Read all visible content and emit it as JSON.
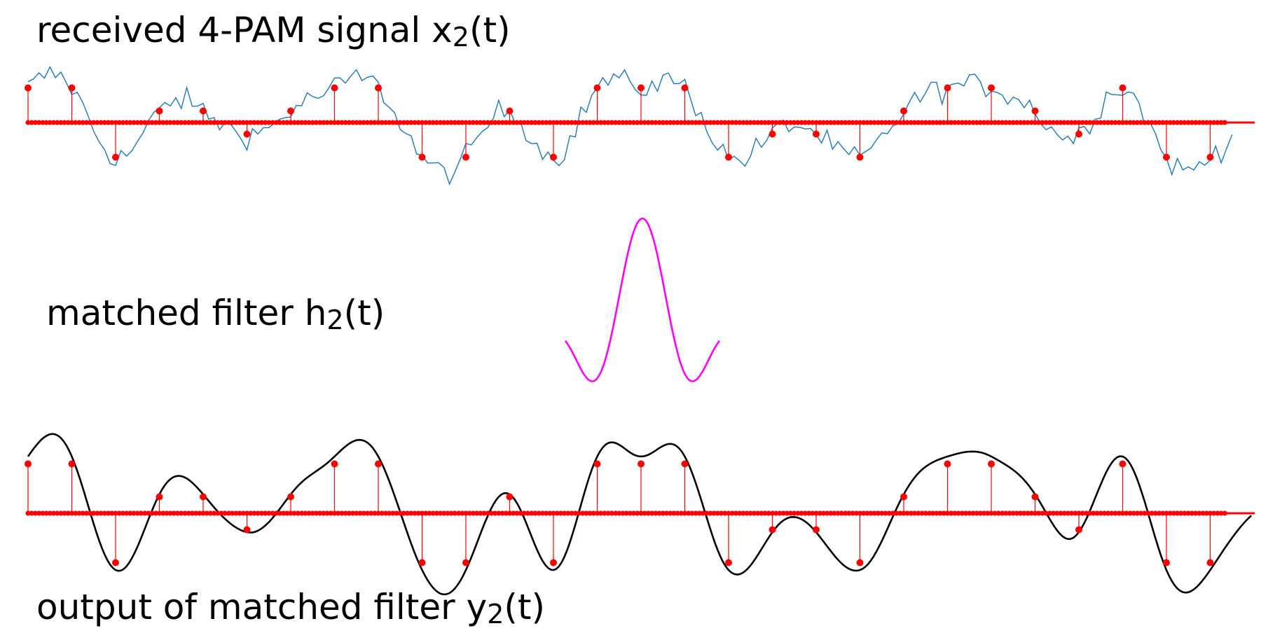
{
  "labels": {
    "received": {
      "text": "received 4-PAM signal x",
      "sub": "2",
      "tail": "(t)"
    },
    "filter": {
      "text": "matched filter h",
      "sub": "2",
      "tail": "(t)"
    },
    "output": {
      "text": "output of matched filter y",
      "sub": "2",
      "tail": "(t)"
    }
  },
  "colors": {
    "received_signal": "#1f77b4",
    "symbols": "#ff0000",
    "filter_pulse": "#ff00ff",
    "output_signal": "#000000"
  },
  "symbols": [
    3,
    3,
    -3,
    1,
    1,
    -1,
    1,
    3,
    3,
    -3,
    -3,
    1,
    -3,
    3,
    3,
    3,
    -3,
    -1,
    -1,
    -3,
    1,
    3,
    3,
    1,
    -1,
    3,
    -3,
    -3
  ]
}
